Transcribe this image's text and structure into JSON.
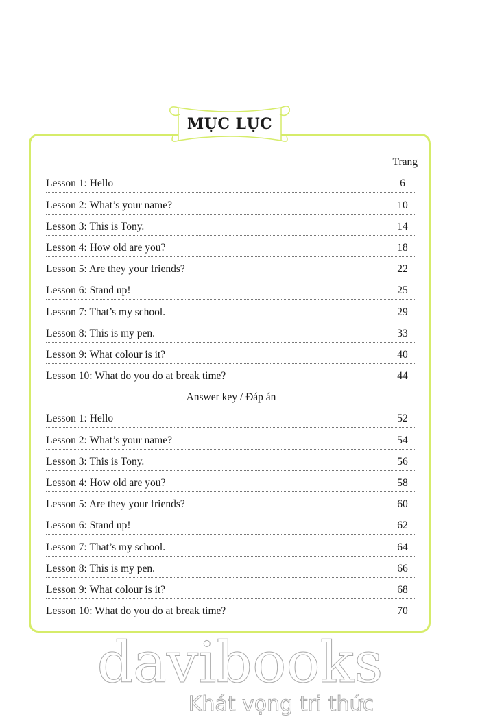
{
  "title": "MỤC LỤC",
  "page_header": "Trang",
  "section_answer": "Answer key / Đáp án",
  "lessons": [
    {
      "label": "Lesson 1: Hello",
      "page": "6"
    },
    {
      "label": "Lesson 2: What’s your name?",
      "page": "10"
    },
    {
      "label": "Lesson 3: This is Tony.",
      "page": "14"
    },
    {
      "label": "Lesson 4: How old are you?",
      "page": "18"
    },
    {
      "label": "Lesson 5: Are they your friends?",
      "page": "22"
    },
    {
      "label": "Lesson 6: Stand up!",
      "page": "25"
    },
    {
      "label": "Lesson 7: That’s my school.",
      "page": "29"
    },
    {
      "label": "Lesson 8: This is my pen.",
      "page": "33"
    },
    {
      "label": "Lesson 9: What colour is it?",
      "page": "40"
    },
    {
      "label": "Lesson 10: What do you do at break time?",
      "page": "44"
    }
  ],
  "answers": [
    {
      "label": "Lesson 1: Hello",
      "page": "52"
    },
    {
      "label": "Lesson 2: What’s your name?",
      "page": "54"
    },
    {
      "label": "Lesson 3: This is Tony.",
      "page": "56"
    },
    {
      "label": "Lesson 4: How old are you?",
      "page": "58"
    },
    {
      "label": "Lesson 5: Are they your friends?",
      "page": "60"
    },
    {
      "label": "Lesson 6: Stand up!",
      "page": "62"
    },
    {
      "label": "Lesson 7: That’s my school.",
      "page": "64"
    },
    {
      "label": "Lesson 8: This is my pen.",
      "page": "66"
    },
    {
      "label": "Lesson 9: What colour is it?",
      "page": "68"
    },
    {
      "label": "Lesson 10: What do you do at break time?",
      "page": "70"
    }
  ],
  "watermark": {
    "brand": "davibooks",
    "slogan": "Khát vọng tri thức"
  },
  "colors": {
    "frame": "#d6ec6a"
  }
}
